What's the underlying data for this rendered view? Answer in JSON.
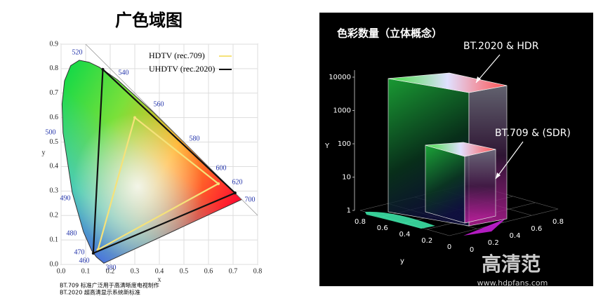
{
  "chart_data": [
    {
      "type": "line",
      "title": "广色域图",
      "xlabel": "x",
      "ylabel": "y",
      "xlim": [
        0,
        0.8
      ],
      "ylim": [
        0,
        0.9
      ],
      "grid": true,
      "legend": "upper right",
      "xticks": [
        {
          "value": 0,
          "label": "0.0"
        },
        0.1,
        0.2,
        0.3,
        0.4,
        0.5,
        0.6,
        0.7,
        0.8
      ],
      "yticks": [
        {
          "value": 0,
          "label": "0.0"
        },
        0.1,
        0.2,
        0.3,
        0.4,
        0.5,
        0.6,
        0.7,
        0.8,
        0.9
      ],
      "wavelengths": [
        "520",
        "540",
        "560",
        "580",
        "600",
        "620",
        "700",
        "500",
        "490",
        "480",
        "470",
        "460",
        "380"
      ],
      "series": [
        {
          "name": "HDTV (rec.709)",
          "color": "#f5e27a",
          "x": [
            0.64,
            0.3,
            0.15,
            0.64
          ],
          "values": [
            0.33,
            0.6,
            0.06,
            0.33
          ]
        },
        {
          "name": "UHDTV (rec.2020)",
          "color": "#111111",
          "x": [
            0.708,
            0.17,
            0.131,
            0.708
          ],
          "values": [
            0.292,
            0.797,
            0.046,
            0.292
          ]
        }
      ],
      "caption": [
        "BT.709 标准广泛用于高清晰度电视制作",
        "BT.2020 超高清显示系统新标准"
      ]
    },
    {
      "type": "volume",
      "title": "色彩数量（立体概念）",
      "ylabel": "Y",
      "zlabel": "y",
      "ylim": [
        1,
        10000
      ],
      "log_scale": true,
      "yticks": [
        1,
        10,
        100,
        1000,
        10000
      ],
      "zticks": [
        0.8,
        0.6,
        0.4,
        0.2,
        0
      ],
      "xticks": [
        0,
        0.2,
        0.4,
        0.6,
        0.8
      ],
      "series": [
        {
          "name": "BT.2020 & HDR",
          "values": [
            10000
          ]
        },
        {
          "name": "BT.709 & (SDR)",
          "values": [
            100
          ]
        }
      ]
    }
  ],
  "watermark": {
    "name": "高清范",
    "url": "www.hdpfans.com"
  }
}
